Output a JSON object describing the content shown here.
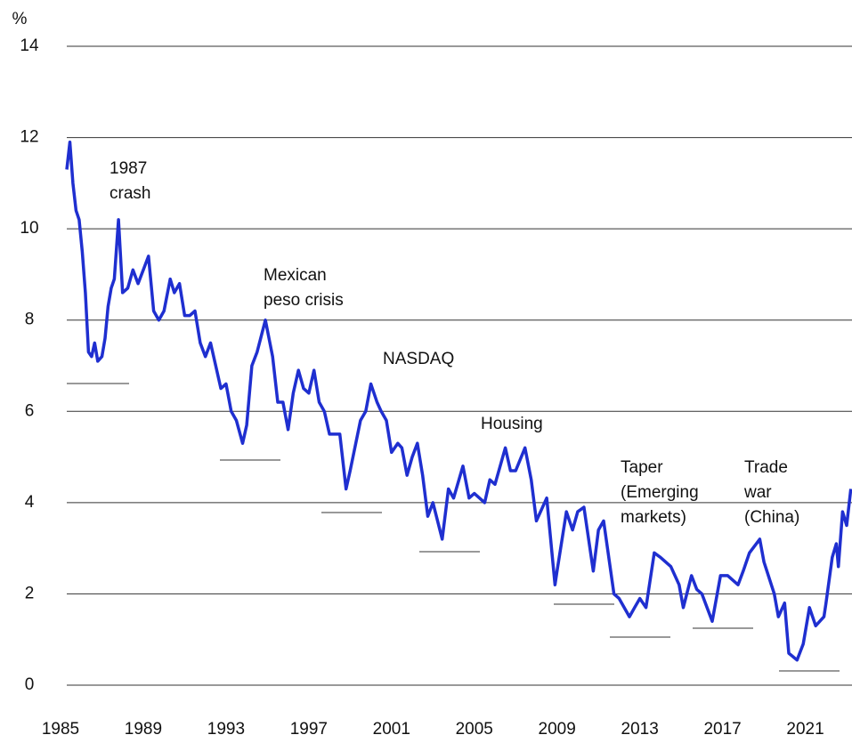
{
  "chart_data": {
    "type": "line",
    "y_label": "%",
    "xlim": [
      1985,
      2023.3
    ],
    "xticks": [
      1985,
      1989,
      1993,
      1997,
      2001,
      2005,
      2009,
      2013,
      2017,
      2021
    ],
    "ylim": [
      0,
      14
    ],
    "yticks": [
      0,
      2,
      4,
      6,
      8,
      10,
      12,
      14
    ],
    "grid": true,
    "series": [
      {
        "color": "#1f2fd0",
        "x": [
          1985.3,
          1985.45,
          1985.6,
          1985.75,
          1985.9,
          1986.05,
          1986.2,
          1986.35,
          1986.5,
          1986.65,
          1986.8,
          1987.0,
          1987.15,
          1987.3,
          1987.45,
          1987.6,
          1987.8,
          1988.0,
          1988.25,
          1988.5,
          1988.75,
          1989.0,
          1989.25,
          1989.5,
          1989.75,
          1990.0,
          1990.3,
          1990.5,
          1990.75,
          1991.0,
          1991.25,
          1991.5,
          1991.75,
          1992.0,
          1992.25,
          1992.5,
          1992.75,
          1993.0,
          1993.25,
          1993.5,
          1993.8,
          1994.0,
          1994.25,
          1994.5,
          1994.9,
          1995.25,
          1995.5,
          1995.75,
          1996.0,
          1996.25,
          1996.5,
          1996.75,
          1997.0,
          1997.25,
          1997.5,
          1997.75,
          1998.0,
          1998.5,
          1998.8,
          1999.0,
          1999.5,
          1999.75,
          2000.0,
          2000.3,
          2000.5,
          2000.75,
          2001.0,
          2001.3,
          2001.5,
          2001.75,
          2002.0,
          2002.25,
          2002.5,
          2002.75,
          2003.0,
          2003.45,
          2003.75,
          2004.0,
          2004.45,
          2004.75,
          2005.0,
          2005.5,
          2005.75,
          2006.0,
          2006.5,
          2006.75,
          2007.0,
          2007.45,
          2007.75,
          2008.0,
          2008.5,
          2008.9,
          2009.0,
          2009.45,
          2009.75,
          2010.0,
          2010.3,
          2010.75,
          2011.0,
          2011.25,
          2011.75,
          2012.0,
          2012.5,
          2012.75,
          2013.0,
          2013.3,
          2013.7,
          2014.0,
          2014.5,
          2014.9,
          2015.1,
          2015.5,
          2015.75,
          2016.0,
          2016.5,
          2016.9,
          2017.25,
          2017.75,
          2018.0,
          2018.3,
          2018.8,
          2019.0,
          2019.5,
          2019.7,
          2020.0,
          2020.2,
          2020.6,
          2020.9,
          2021.2,
          2021.5,
          2021.9,
          2022.0,
          2022.3,
          2022.5,
          2022.6,
          2022.8,
          2023.0,
          2023.2
        ],
        "values": [
          11.3,
          11.9,
          11.0,
          10.4,
          10.2,
          9.5,
          8.6,
          7.3,
          7.2,
          7.5,
          7.1,
          7.2,
          7.6,
          8.3,
          8.7,
          8.9,
          10.2,
          8.6,
          8.7,
          9.1,
          8.8,
          9.1,
          9.4,
          8.2,
          8.0,
          8.2,
          8.9,
          8.6,
          8.8,
          8.1,
          8.1,
          8.2,
          7.5,
          7.2,
          7.5,
          7.0,
          6.5,
          6.6,
          6.0,
          5.8,
          5.3,
          5.7,
          7.0,
          7.3,
          8.0,
          7.2,
          6.2,
          6.2,
          5.6,
          6.4,
          6.9,
          6.5,
          6.4,
          6.9,
          6.2,
          6.0,
          5.5,
          5.5,
          4.3,
          4.7,
          5.8,
          6.0,
          6.6,
          6.2,
          6.0,
          5.8,
          5.1,
          5.3,
          5.2,
          4.6,
          5.0,
          5.3,
          4.6,
          3.7,
          4.0,
          3.2,
          4.3,
          4.1,
          4.8,
          4.1,
          4.2,
          4.0,
          4.5,
          4.4,
          5.2,
          4.7,
          4.7,
          5.2,
          4.5,
          3.6,
          4.1,
          2.2,
          2.5,
          3.8,
          3.4,
          3.8,
          3.9,
          2.5,
          3.4,
          3.6,
          2.0,
          1.9,
          1.5,
          1.7,
          1.9,
          1.7,
          2.9,
          2.8,
          2.6,
          2.2,
          1.7,
          2.4,
          2.1,
          2.0,
          1.4,
          2.4,
          2.4,
          2.2,
          2.5,
          2.9,
          3.2,
          2.7,
          2.0,
          1.5,
          1.8,
          0.7,
          0.55,
          0.9,
          1.7,
          1.3,
          1.5,
          1.8,
          2.8,
          3.1,
          2.6,
          3.8,
          3.5,
          4.3
        ]
      }
    ],
    "annotations": [
      {
        "lines": [
          "1987",
          "crash"
        ]
      },
      {
        "lines": [
          "Mexican",
          "peso crisis"
        ]
      },
      {
        "lines": [
          "NASDAQ"
        ]
      },
      {
        "lines": [
          "Housing"
        ]
      },
      {
        "lines": [
          "Taper",
          "(Emerging",
          "markets)"
        ]
      },
      {
        "lines": [
          "Trade",
          "war",
          "(China)"
        ]
      }
    ]
  }
}
